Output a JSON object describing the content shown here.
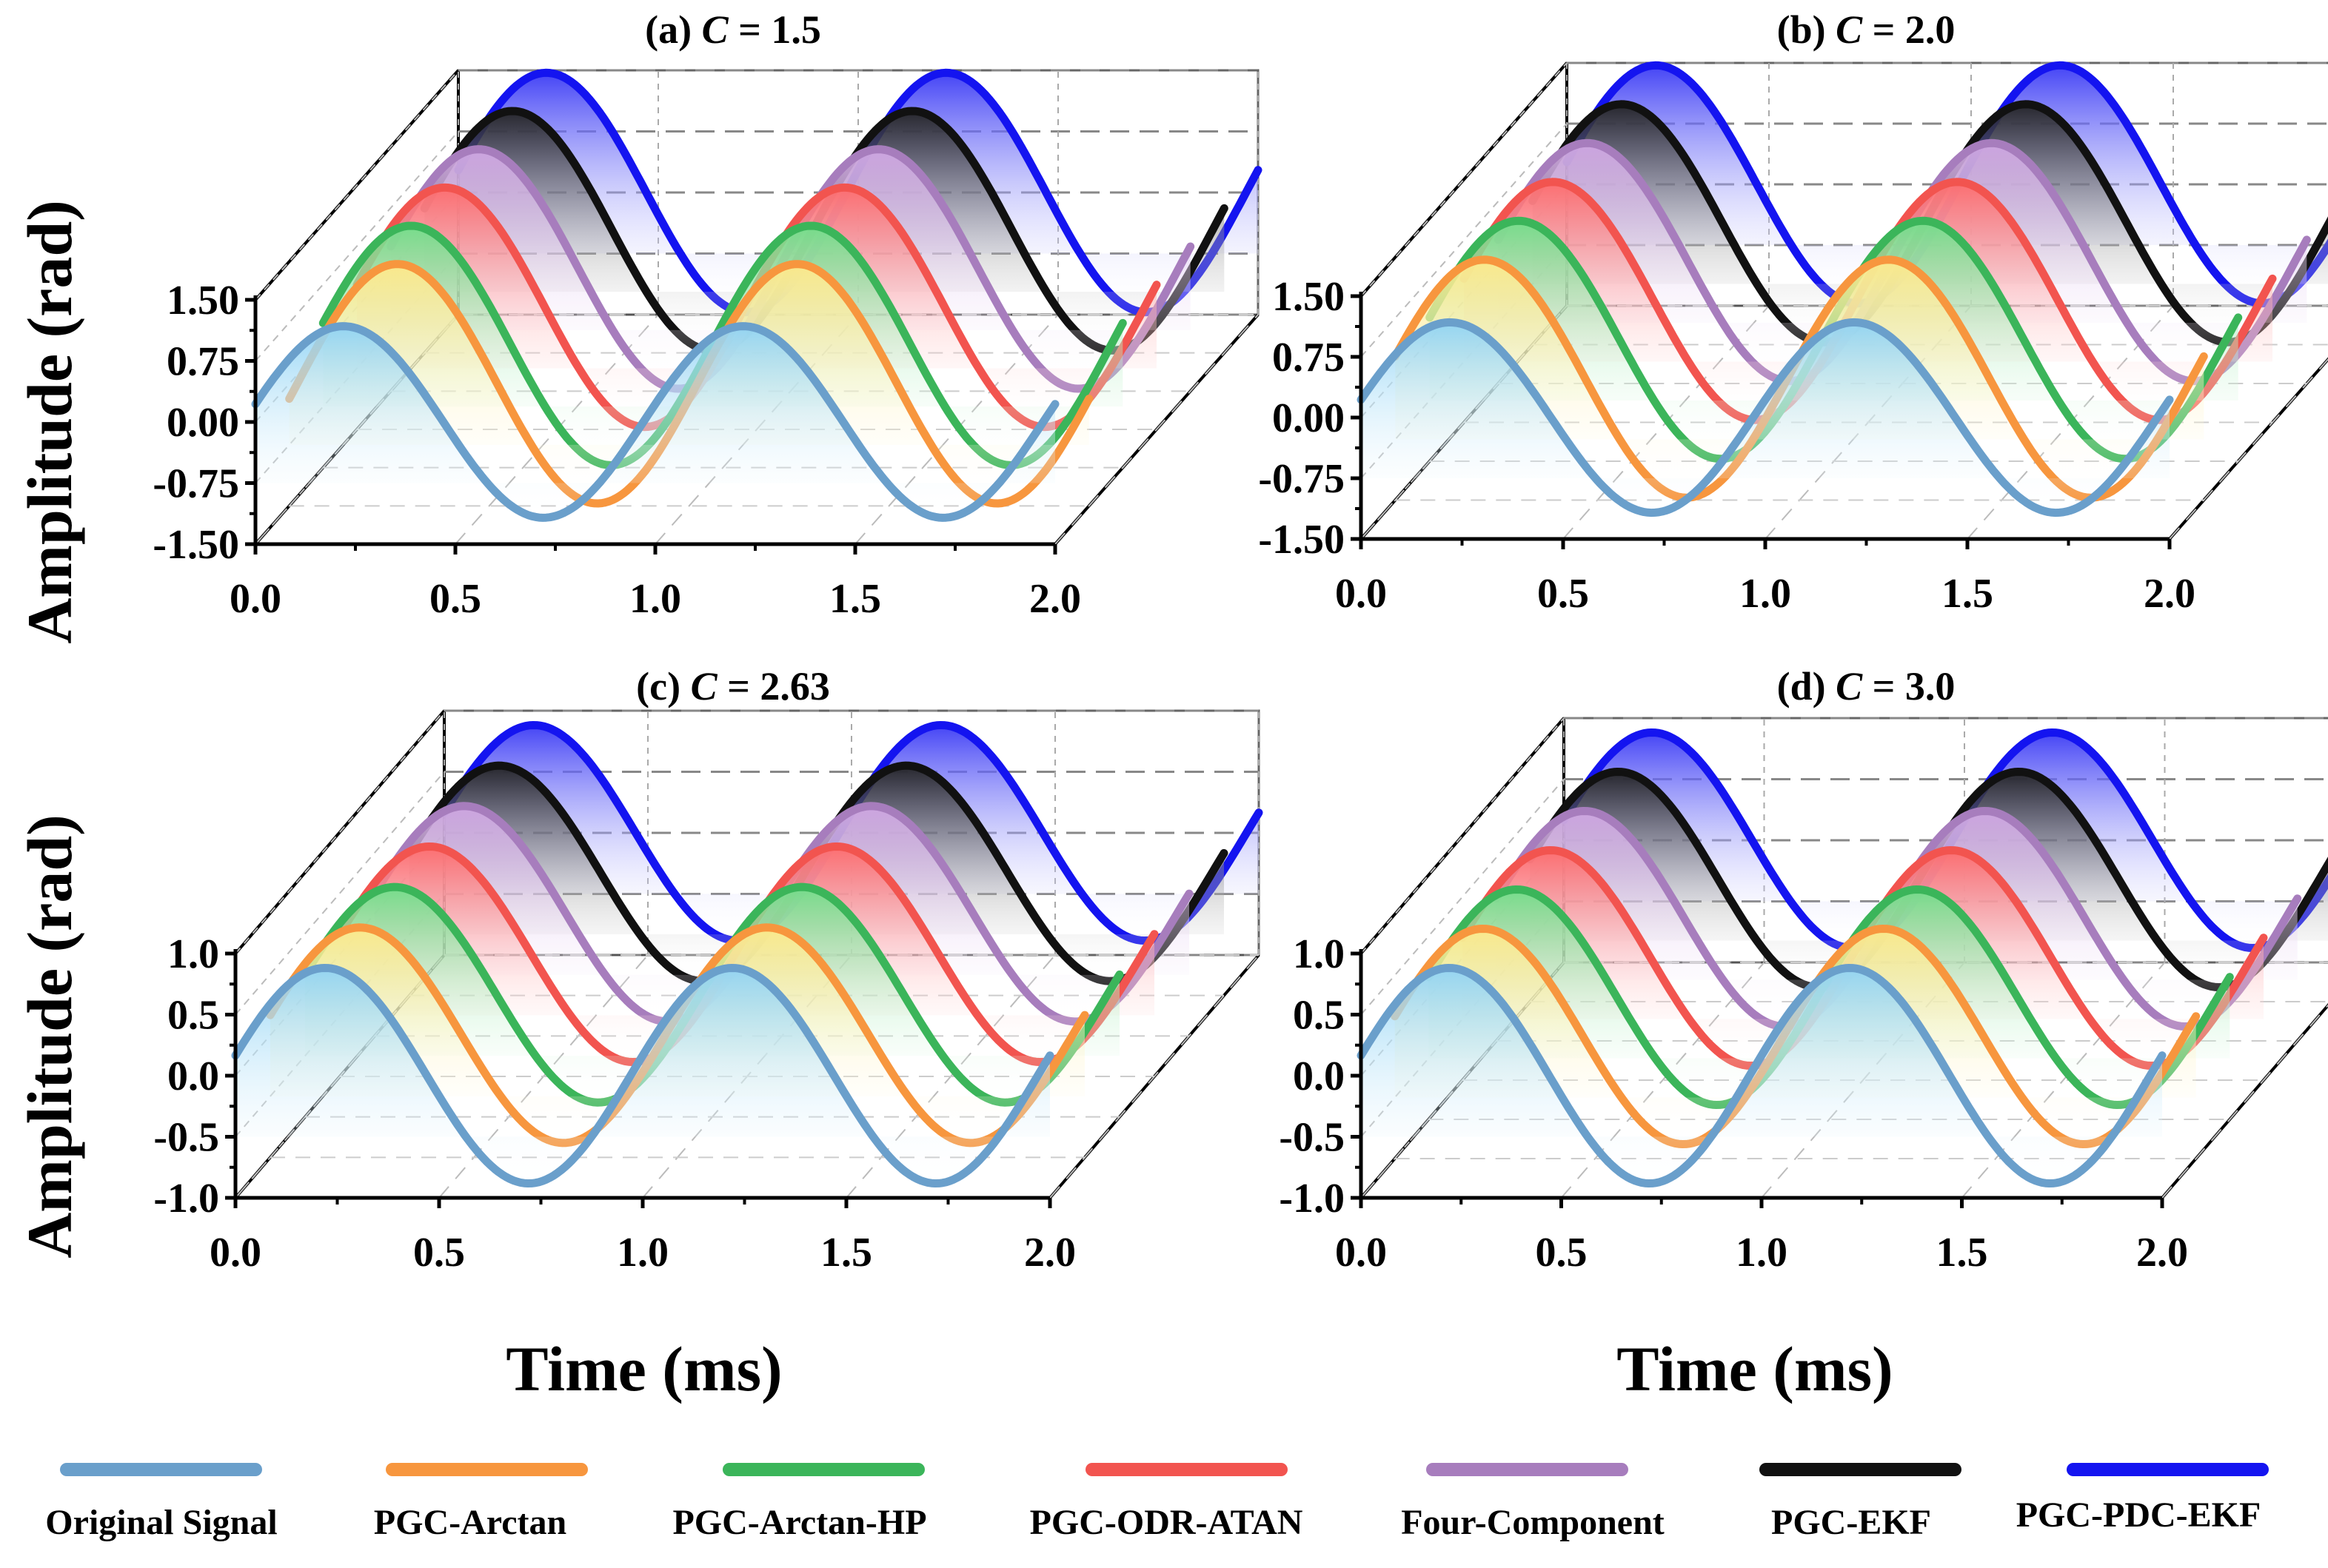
{
  "chart_data": [
    {
      "type": "line",
      "title_prefix": "(a)",
      "title_var": "C",
      "title_value": "= 1.5",
      "ylabel": "Amplitude (rad)",
      "xlabel": "",
      "xticks": [
        "0.0",
        "0.5",
        "1.0",
        "1.5",
        "2.0"
      ],
      "yticks": [
        "1.50",
        "0.75",
        "0.00",
        "-0.75",
        "-1.50"
      ],
      "xlim": [
        0,
        2
      ],
      "ylim": [
        -1.5,
        1.5
      ],
      "grid": true,
      "x_unit": "ms",
      "series_amplitude": [
        0.8,
        1.0,
        1.0,
        1.0,
        1.0,
        1.0,
        1.0
      ],
      "series_phase_shift_ms": [
        0.0,
        0.05,
        0.0,
        0.0,
        0.0,
        0.0,
        0.0
      ],
      "signal_period_ms": 1.0
    },
    {
      "type": "line",
      "title_prefix": "(b)",
      "title_var": "C",
      "title_value": "= 2.0",
      "ylabel": "",
      "xlabel": "",
      "xticks": [
        "0.0",
        "0.5",
        "1.0",
        "1.5",
        "2.0"
      ],
      "yticks": [
        "1.50",
        "0.75",
        "0.00",
        "-0.75",
        "-1.50"
      ],
      "xlim": [
        0,
        2
      ],
      "ylim": [
        -1.5,
        1.5
      ],
      "grid": true,
      "x_unit": "ms",
      "series_amplitude": [
        0.8,
        1.0,
        1.0,
        1.0,
        1.0,
        1.0,
        1.0
      ],
      "series_phase_shift_ms": [
        0.0,
        0.0,
        0.0,
        0.0,
        0.0,
        0.0,
        0.0
      ],
      "signal_period_ms": 1.0
    },
    {
      "type": "line",
      "title_prefix": "(c)",
      "title_var": "C",
      "title_value": "= 2.63",
      "ylabel": "Amplitude (rad)",
      "xlabel": "Time (ms)",
      "xticks": [
        "0.0",
        "0.5",
        "1.0",
        "1.5",
        "2.0"
      ],
      "yticks": [
        "1.0",
        "0.5",
        "0.0",
        "-0.5",
        "-1.0"
      ],
      "xlim": [
        0,
        2
      ],
      "ylim": [
        -1.0,
        1.0
      ],
      "grid": true,
      "x_unit": "ms",
      "series_amplitude": [
        0.9,
        0.9,
        0.9,
        0.9,
        0.9,
        0.9,
        0.9
      ],
      "series_phase_shift_ms": [
        0.0,
        0.0,
        0.0,
        0.0,
        0.0,
        0.0,
        0.0
      ],
      "signal_period_ms": 1.0
    },
    {
      "type": "line",
      "title_prefix": "(d)",
      "title_var": "C",
      "title_value": "= 3.0",
      "ylabel": "",
      "xlabel": "Time (ms)",
      "xticks": [
        "0.0",
        "0.5",
        "1.0",
        "1.5",
        "2.0"
      ],
      "yticks": [
        "1.0",
        "0.5",
        "0.0",
        "-0.5",
        "-1.0"
      ],
      "xlim": [
        0,
        2
      ],
      "ylim": [
        -1.0,
        1.0
      ],
      "grid": true,
      "x_unit": "ms",
      "series_amplitude": [
        0.9,
        0.9,
        0.9,
        0.9,
        0.9,
        0.9,
        0.9
      ],
      "series_phase_shift_ms": [
        0.0,
        0.0,
        0.0,
        0.0,
        0.0,
        0.0,
        0.0
      ],
      "signal_period_ms": 1.0
    }
  ],
  "series": [
    {
      "name": "Original Signal",
      "color": "#6a9fcb",
      "fill": "#8fd3f5"
    },
    {
      "name": "PGC-Arctan",
      "color": "#f7963e",
      "fill": "#ffe98a"
    },
    {
      "name": "PGC-Arctan-HP",
      "color": "#3bb55a",
      "fill": "#6fe08a"
    },
    {
      "name": "PGC-ODR-ATAN",
      "color": "#f2544f",
      "fill": "#ff6b6b"
    },
    {
      "name": "Four-Component",
      "color": "#a77dbd",
      "fill": "#d2a8e6"
    },
    {
      "name": "PGC-EKF",
      "color": "#111111",
      "fill": "#222222"
    },
    {
      "name": "PGC-PDC-EKF",
      "color": "#1414f0",
      "fill": "#3a3af5"
    }
  ],
  "legend": {
    "placement": "bottom"
  }
}
